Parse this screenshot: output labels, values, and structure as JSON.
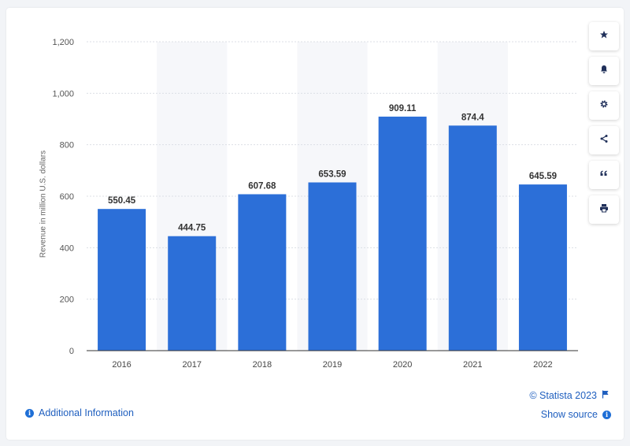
{
  "chart_data": {
    "type": "bar",
    "categories": [
      "2016",
      "2017",
      "2018",
      "2019",
      "2020",
      "2021",
      "2022"
    ],
    "values": [
      550.45,
      444.75,
      607.68,
      653.59,
      909.11,
      874.4,
      645.59
    ],
    "value_labels": [
      "550.45",
      "444.75",
      "607.68",
      "653.59",
      "909.11",
      "874.4",
      "645.59"
    ],
    "title": "",
    "xlabel": "",
    "ylabel": "Revenue in million U.S. dollars",
    "ylim": [
      0,
      1200
    ],
    "yticks": [
      0,
      200,
      400,
      600,
      800,
      1000,
      1200
    ],
    "ytick_labels": [
      "0",
      "200",
      "400",
      "600",
      "800",
      "1,000",
      "1,200"
    ],
    "grid": true,
    "bar_color": "#2c6fd8",
    "alt_band_color": "#f6f7fa"
  },
  "toolbar": {
    "items": [
      {
        "icon": "star-icon"
      },
      {
        "icon": "bell-icon"
      },
      {
        "icon": "gear-icon"
      },
      {
        "icon": "share-icon"
      },
      {
        "icon": "quote-icon"
      },
      {
        "icon": "print-icon"
      }
    ]
  },
  "footer": {
    "additional_info": "Additional Information",
    "credit": "© Statista 2023",
    "show_source": "Show source"
  },
  "colors": {
    "link": "#1f5fbf",
    "accent": "#1f6fd6"
  }
}
